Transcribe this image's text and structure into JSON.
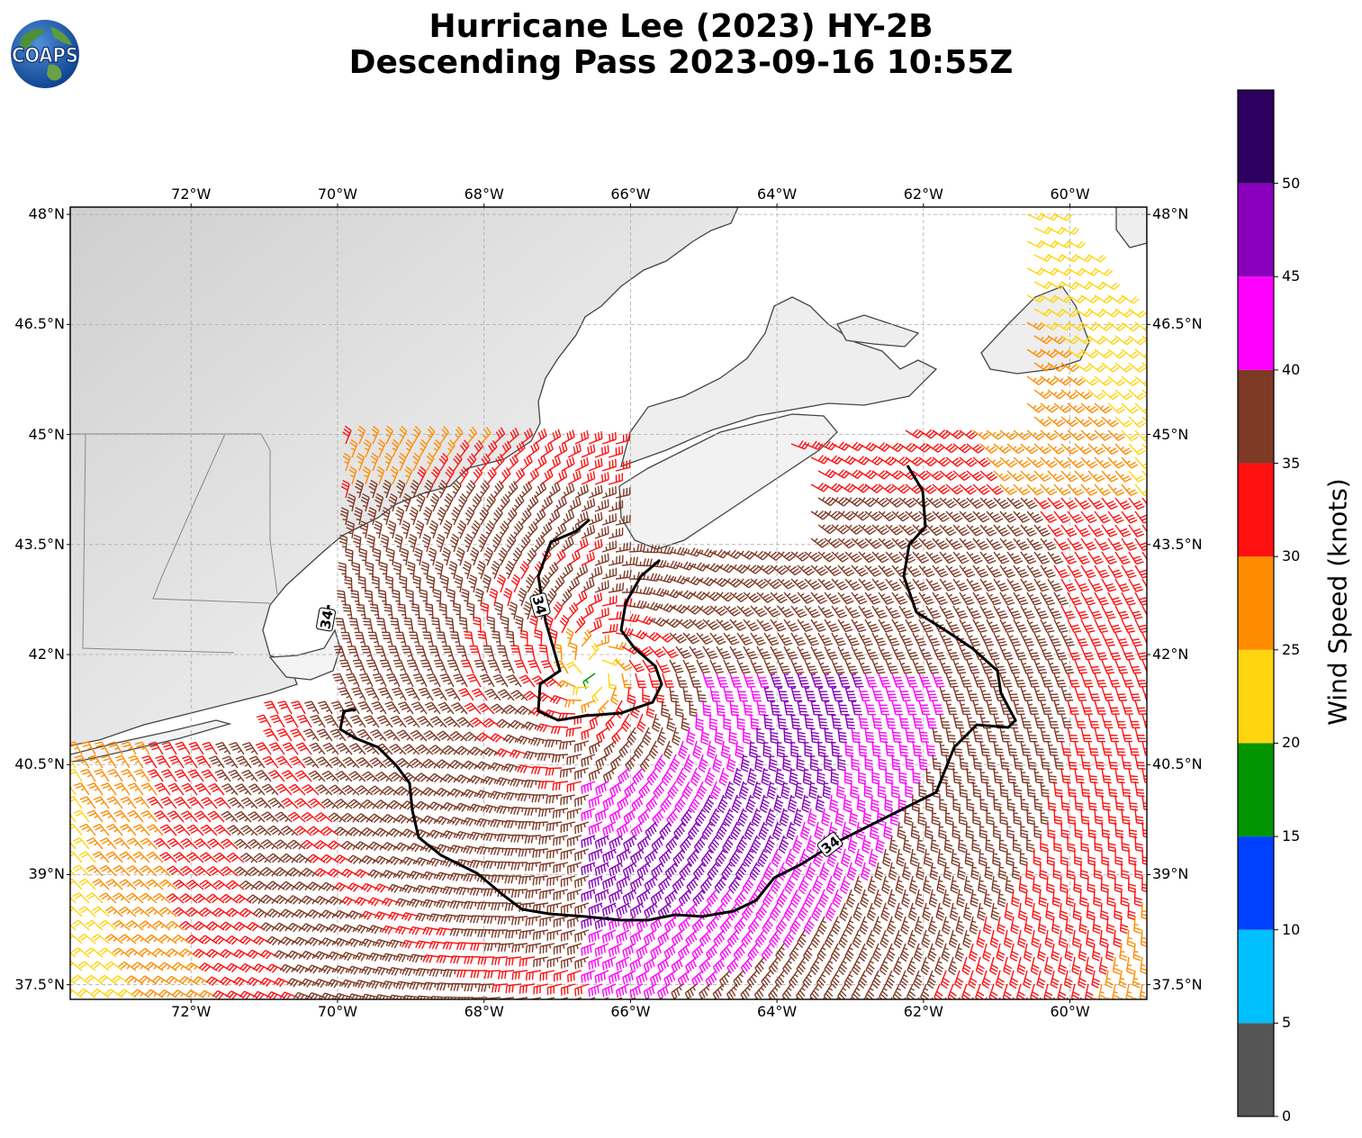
{
  "title": {
    "line1": "Hurricane Lee (2023) HY-2B",
    "line2": "Descending Pass 2023-09-16 10:55Z"
  },
  "logo": {
    "text": "COAPS",
    "icon": "globe-icon"
  },
  "map": {
    "lon_range": [
      -73.65,
      -58.95
    ],
    "lat_range": [
      37.3,
      48.1
    ],
    "lon_ticks": [
      "72°W",
      "70°W",
      "68°W",
      "66°W",
      "64°W",
      "62°W",
      "60°W"
    ],
    "lon_tick_values": [
      -72,
      -70,
      -68,
      -66,
      -64,
      -62,
      -60
    ],
    "lat_ticks": [
      "48°N",
      "46.5°N",
      "45°N",
      "43.5°N",
      "42°N",
      "40.5°N",
      "39°N",
      "37.5°N"
    ],
    "lat_tick_values": [
      48,
      46.5,
      45,
      43.5,
      42,
      40.5,
      39,
      37.5
    ],
    "gridlines": true,
    "storm_center": {
      "lon": -66.5,
      "lat": 41.8
    },
    "contour": {
      "label": "34",
      "level_knots": 34
    }
  },
  "colorbar": {
    "label": "Wind Speed (knots)",
    "ticks": [
      "0",
      "5",
      "10",
      "15",
      "20",
      "25",
      "30",
      "35",
      "40",
      "45",
      "50"
    ],
    "bins": [
      {
        "min": 0,
        "max": 5,
        "color": "#555555"
      },
      {
        "min": 5,
        "max": 10,
        "color": "#00bfff"
      },
      {
        "min": 10,
        "max": 15,
        "color": "#0040ff"
      },
      {
        "min": 15,
        "max": 20,
        "color": "#009400"
      },
      {
        "min": 20,
        "max": 25,
        "color": "#ffd50f"
      },
      {
        "min": 25,
        "max": 30,
        "color": "#ff8c00"
      },
      {
        "min": 30,
        "max": 35,
        "color": "#ff1010"
      },
      {
        "min": 35,
        "max": 40,
        "color": "#7f3a26"
      },
      {
        "min": 40,
        "max": 45,
        "color": "#ff00ff"
      },
      {
        "min": 45,
        "max": 50,
        "color": "#8800bb"
      },
      {
        "min": 50,
        "max": 55,
        "color": "#2d0060"
      }
    ]
  }
}
